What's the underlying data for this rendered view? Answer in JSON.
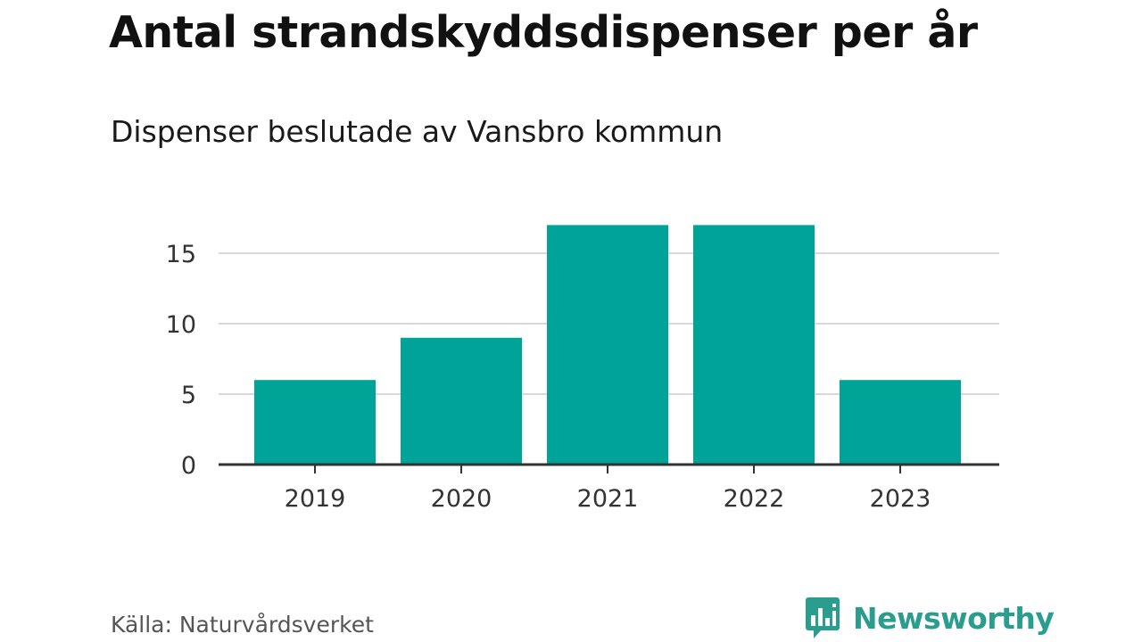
{
  "header": {
    "title": "Antal strandskyddsdispenser per år",
    "subtitle": "Dispenser beslutade av Vansbro kommun"
  },
  "footer": {
    "source": "Källa: Naturvårdsverket",
    "brand": "Newsworthy"
  },
  "colors": {
    "bar": "#00a398",
    "grid": "#d9d9d9",
    "axis": "#333333",
    "brand": "#2a9d8f"
  },
  "chart_data": {
    "type": "bar",
    "title": "Antal strandskyddsdispenser per år",
    "subtitle": "Dispenser beslutade av Vansbro kommun",
    "categories": [
      "2019",
      "2020",
      "2021",
      "2022",
      "2023"
    ],
    "values": [
      6,
      9,
      17,
      17,
      6
    ],
    "xlabel": "",
    "ylabel": "",
    "ylim": [
      0,
      17
    ],
    "yticks": [
      0,
      5,
      10,
      15
    ],
    "grid": true,
    "legend": "none"
  }
}
